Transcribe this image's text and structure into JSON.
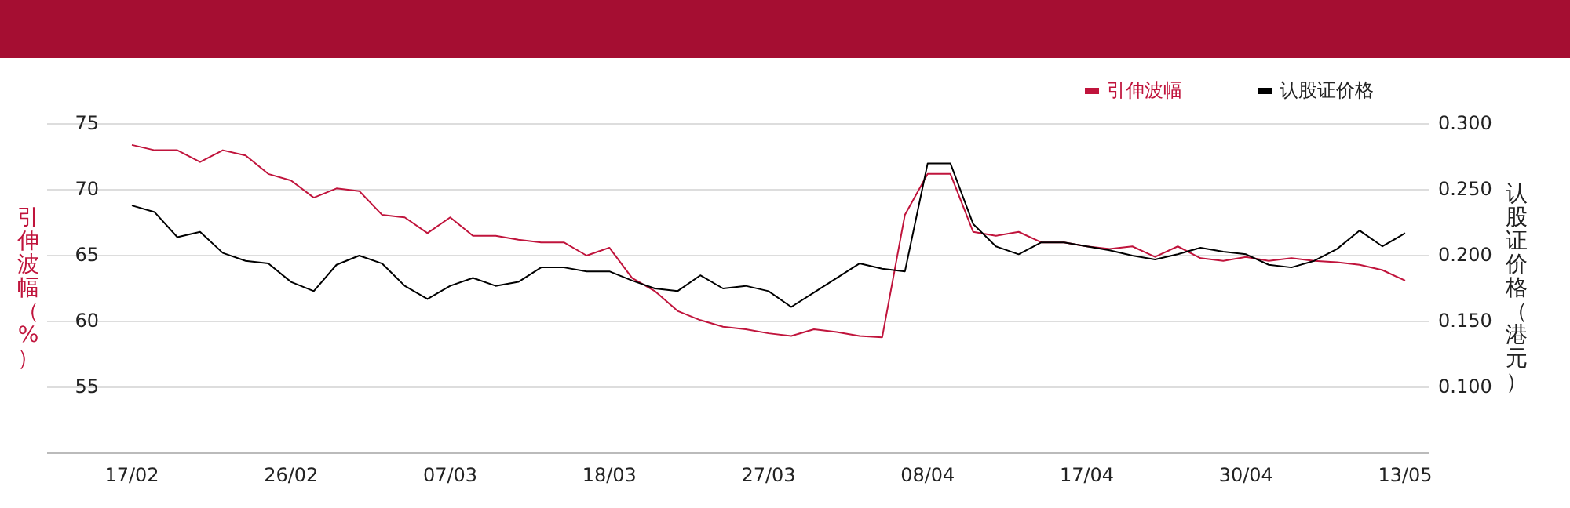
{
  "chart_data": {
    "type": "line",
    "ylabel": "引伸波幅（%）",
    "y2label": "认股证价格（港元）",
    "categories": [
      "17/02",
      null,
      null,
      null,
      null,
      null,
      null,
      "26/02",
      null,
      null,
      null,
      null,
      null,
      null,
      "07/03",
      null,
      null,
      null,
      null,
      null,
      null,
      "18/03",
      null,
      null,
      null,
      null,
      null,
      null,
      "27/03",
      null,
      null,
      null,
      null,
      null,
      null,
      "08/04",
      null,
      null,
      null,
      null,
      null,
      null,
      "17/04",
      null,
      null,
      null,
      null,
      null,
      null,
      "30/04",
      null,
      null,
      null,
      null,
      null,
      null,
      "13/05"
    ],
    "series": [
      {
        "name": "引伸波幅",
        "color": "#c0143c",
        "values": [
          73.4,
          73.0,
          73.0,
          72.1,
          73.0,
          72.6,
          71.2,
          70.7,
          69.4,
          70.1,
          69.9,
          68.1,
          67.9,
          66.7,
          67.9,
          66.5,
          66.5,
          66.2,
          66.0,
          66.0,
          65.0,
          65.6,
          63.3,
          62.3,
          60.8,
          60.1,
          59.6,
          59.4,
          59.1,
          58.9,
          59.4,
          59.2,
          58.9,
          58.8,
          68.1,
          71.2,
          71.2,
          66.8,
          66.5,
          66.8,
          66.0,
          66.0,
          65.7,
          65.5,
          65.7,
          64.9,
          65.7,
          64.8,
          64.6,
          64.9,
          64.6,
          64.8,
          64.6,
          64.5,
          64.3,
          63.9,
          63.1
        ]
      },
      {
        "name": "认股证价格",
        "color": "#000000",
        "axis": "y2",
        "values": [
          0.238,
          0.233,
          0.214,
          0.218,
          0.202,
          0.196,
          0.194,
          0.18,
          0.173,
          0.193,
          0.2,
          0.194,
          0.177,
          0.167,
          0.177,
          0.183,
          0.177,
          0.18,
          0.191,
          0.191,
          0.188,
          0.188,
          0.181,
          0.175,
          0.173,
          0.185,
          0.175,
          0.177,
          0.173,
          0.161,
          0.172,
          0.183,
          0.194,
          0.19,
          0.188,
          0.27,
          0.27,
          0.224,
          0.207,
          0.201,
          0.21,
          0.21,
          0.207,
          0.204,
          0.2,
          0.197,
          0.201,
          0.206,
          0.203,
          0.201,
          0.193,
          0.191,
          0.196,
          0.205,
          0.219,
          0.207,
          0.217
        ]
      }
    ],
    "ylim": [
      50,
      75
    ],
    "yticks": [
      55,
      60,
      65,
      70,
      75
    ],
    "y2lim": [
      0.05,
      0.3
    ],
    "y2ticks": [
      {
        "value": 0.1,
        "label": "0.100"
      },
      {
        "value": 0.15,
        "label": "0.150"
      },
      {
        "value": 0.2,
        "label": "0.200"
      },
      {
        "value": 0.25,
        "label": "0.250"
      },
      {
        "value": 0.3,
        "label": "0.300"
      }
    ],
    "grid": "y",
    "legend": "top right",
    "marker": "none",
    "line_style": "solid"
  }
}
